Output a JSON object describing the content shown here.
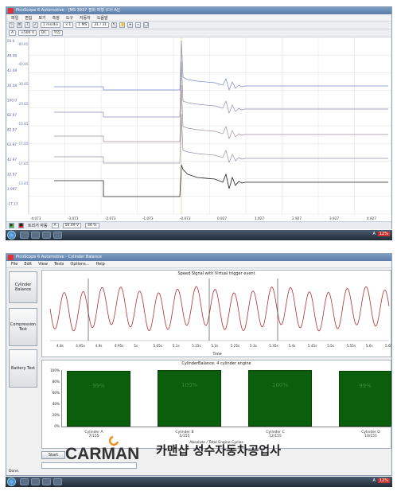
{
  "top_window": {
    "title": "PicoScope 6 Automotive - [MS 3937 점화 파형 (CH A)]",
    "menu": [
      "파일",
      "편집",
      "보기",
      "측정",
      "도구",
      "자동차",
      "도움말"
    ],
    "toolbar": {
      "timebase": "1 ms/div",
      "zoom": "x 1",
      "samples": "1 MS",
      "buffer": "31 / 31",
      "channel": "A",
      "range": "±500 V",
      "coupling": "DC",
      "filter": "꺼짐"
    },
    "left_axis_labels": [
      "50.0",
      "48.48",
      "42.48",
      "30.48",
      "100.0",
      "82.97",
      "82.97",
      "62.97",
      "42.97",
      "22.97",
      "3.997",
      "-17.13"
    ],
    "right_axis_labels": [
      "-80.85",
      "-40.85",
      "-30.85",
      "-20.85",
      "-10.85",
      "-17.85",
      "-17.85",
      "-13.85"
    ],
    "x_ticks": [
      "-4.073",
      "-3.073",
      "-2.073",
      "-1.073",
      "-0.073",
      "0.927",
      "1.927",
      "2.927",
      "3.927",
      "4.927"
    ],
    "statusbar": {
      "mode": "트리거 자동",
      "channel": "A",
      "level": "50.49 V",
      "percent": "46 %"
    }
  },
  "bottom_window": {
    "title": "PicoScope 6 Automotive - Cylinder Balance",
    "menu": [
      "File",
      "Edit",
      "View",
      "Tests",
      "Options...",
      "Help"
    ],
    "side_buttons": [
      "Cylinder Balance",
      "Compression Test",
      "Battery Test"
    ],
    "speed_chart": {
      "title": "Speed Signal with Virtual trigger event",
      "x_ticks": [
        "4.8s",
        "4.85s",
        "4.9s",
        "4.95s",
        "5s",
        "5.05s",
        "5.1s",
        "5.15s",
        "5.2s",
        "5.25s",
        "5.3s",
        "5.35s",
        "5.4s",
        "5.45s",
        "5.5s",
        "5.55s",
        "5.6s",
        "5.65s"
      ],
      "xlabel": "Time"
    },
    "balance_chart": {
      "title": "CylinderBalance: 4 cylinder engine",
      "y_ticks": [
        "100%",
        "80%",
        "60%",
        "40%",
        "20%",
        "0%"
      ],
      "xlabel": "Absolute / Total Engine Cycles",
      "bars": [
        {
          "name": "Cylinder A",
          "value_label": "99%",
          "count": "7/155",
          "value": 99
        },
        {
          "name": "Cylinder B",
          "value_label": "100%",
          "count": "5/155",
          "value": 100
        },
        {
          "name": "Cylinder C",
          "value_label": "100%",
          "count": "12/155",
          "value": 100
        },
        {
          "name": "Cylinder D",
          "value_label": "99%",
          "count": "10/155",
          "value": 99
        }
      ]
    },
    "start_button": "Start",
    "status": "Done."
  },
  "watermark": {
    "brand": "CARMAN",
    "korean": "카맨샵 성수자동차공업사"
  },
  "taskbar_tray": {
    "lang": "A",
    "percent": "12%"
  },
  "colors": {
    "bar_green": "#0b5e0b",
    "wave_red": "#b03030",
    "brand_orange": "#f28c1e"
  }
}
